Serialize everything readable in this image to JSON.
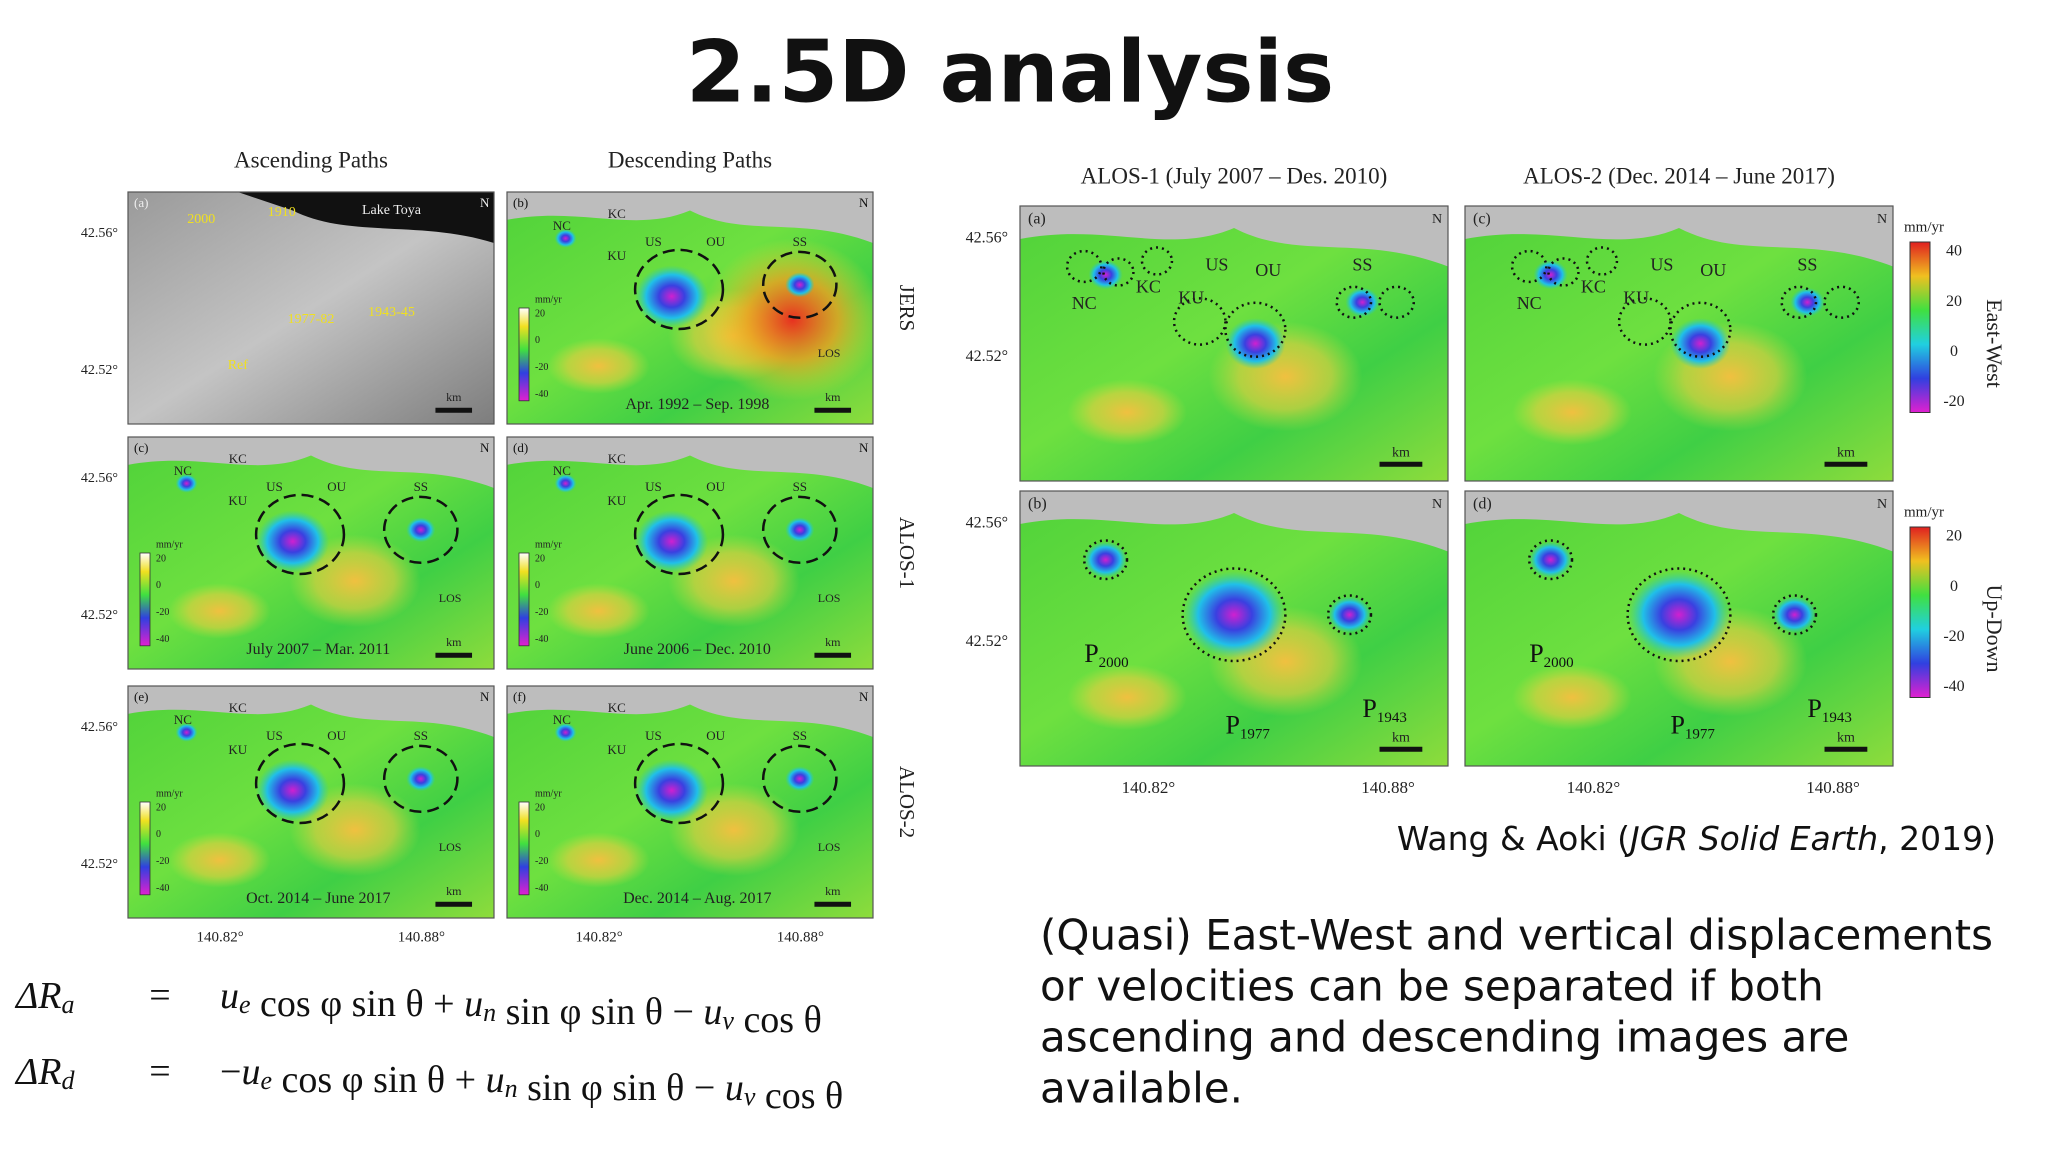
{
  "title": "2.5D analysis",
  "left_figure": {
    "column_titles": [
      "Ascending Paths",
      "Descending Paths"
    ],
    "row_labels": [
      "JERS",
      "ALOS-1",
      "ALOS-2"
    ],
    "lat_ticks": [
      "42.56°",
      "42.52°"
    ],
    "lon_ticks": [
      "140.82°",
      "140.88°"
    ],
    "sites": [
      "NC",
      "KC",
      "KU",
      "US",
      "OU",
      "SS"
    ],
    "north": "N",
    "scale": "km",
    "los": "LOS",
    "colorbar_unit": "mm/yr",
    "colorbar_ticks": [
      "20",
      "0",
      "-20",
      "-40"
    ],
    "relief_labels": [
      "Lake Toya",
      "Ref",
      "2000",
      "1910",
      "1977-82",
      "1943-45"
    ],
    "panels": [
      {
        "letter": "(a)"
      },
      {
        "letter": "(b)",
        "date": "Apr. 1992 – Sep. 1998"
      },
      {
        "letter": "(c)",
        "date": "July 2007 – Mar. 2011"
      },
      {
        "letter": "(d)",
        "date": "June 2006 – Dec. 2010"
      },
      {
        "letter": "(e)",
        "date": "Oct. 2014 – June 2017"
      },
      {
        "letter": "(f)",
        "date": "Dec. 2014 – Aug. 2017"
      }
    ]
  },
  "right_figure": {
    "column_titles": [
      "ALOS-1 (July 2007 – Des. 2010)",
      "ALOS-2 (Dec. 2014 – June 2017)"
    ],
    "lat_ticks": [
      "42.56°",
      "42.52°"
    ],
    "lon_ticks": [
      "140.82°",
      "140.88°"
    ],
    "sites": [
      "NC",
      "KC",
      "KU",
      "US",
      "OU",
      "SS"
    ],
    "sources": [
      [
        "P",
        "2000"
      ],
      [
        "P",
        "1977"
      ],
      [
        "P",
        "1943"
      ]
    ],
    "north": "N",
    "scale": "km",
    "panel_letters": [
      [
        "(a)",
        "(c)"
      ],
      [
        "(b)",
        "(d)"
      ]
    ],
    "colorbars": [
      {
        "unit": "mm/yr",
        "ticks": [
          "40",
          "20",
          "0",
          "-20"
        ],
        "label": "East-West"
      },
      {
        "unit": "mm/yr",
        "ticks": [
          "20",
          "0",
          "-20",
          "-40"
        ],
        "label": "Up-Down"
      }
    ]
  },
  "equations": [
    {
      "lhs": [
        "ΔR",
        "a"
      ],
      "relation": "=",
      "rhs": [
        [
          "u",
          "e"
        ],
        " cos φ sin θ + ",
        [
          "u",
          "n"
        ],
        " sin φ sin θ − ",
        [
          "u",
          "v"
        ],
        " cos θ"
      ]
    },
    {
      "lhs": [
        "ΔR",
        "d"
      ],
      "relation": "=",
      "rhs": [
        "−",
        [
          "u",
          "e"
        ],
        " cos φ sin θ + ",
        [
          "u",
          "n"
        ],
        " sin φ sin θ − ",
        [
          "u",
          "v"
        ],
        " cos θ"
      ]
    }
  ],
  "citation": [
    "Wang & Aoki (",
    "JGR Solid Earth",
    ", 2019)"
  ],
  "body_lines": [
    "(Quasi) East-West and vertical displacements",
    "or velocities can be separated if both",
    "ascending and descending images are",
    "available."
  ]
}
